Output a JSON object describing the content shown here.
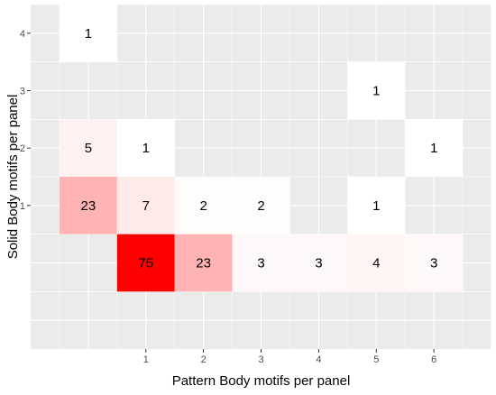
{
  "chart_data": {
    "type": "heatmap",
    "xlabel": "Pattern Body motifs per panel",
    "ylabel": "Solid Body motifs per panel",
    "x_ticks": [
      "1",
      "2",
      "3",
      "4",
      "5",
      "6"
    ],
    "y_ticks": [
      "1",
      "2",
      "3",
      "4"
    ],
    "xlim": [
      -1,
      7
    ],
    "ylim": [
      -1.5,
      4.5
    ],
    "grid": true,
    "fill_low": "#ffffff",
    "fill_high": "#ff0000",
    "value_min": 1,
    "value_max": 75,
    "cells": [
      {
        "x": 0,
        "y": 4,
        "value": 1,
        "label": "1"
      },
      {
        "x": 5,
        "y": 3,
        "value": 1,
        "label": "1"
      },
      {
        "x": 0,
        "y": 2,
        "value": 5,
        "label": "5"
      },
      {
        "x": 1,
        "y": 2,
        "value": 1,
        "label": "1"
      },
      {
        "x": 6,
        "y": 2,
        "value": 1,
        "label": "1"
      },
      {
        "x": 0,
        "y": 1,
        "value": 23,
        "label": "23"
      },
      {
        "x": 1,
        "y": 1,
        "value": 7,
        "label": "7"
      },
      {
        "x": 2,
        "y": 1,
        "value": 2,
        "label": "2"
      },
      {
        "x": 3,
        "y": 1,
        "value": 2,
        "label": "2"
      },
      {
        "x": 5,
        "y": 1,
        "value": 1,
        "label": "1"
      },
      {
        "x": 1,
        "y": 0,
        "value": 75,
        "label": "75"
      },
      {
        "x": 2,
        "y": 0,
        "value": 23,
        "label": "23"
      },
      {
        "x": 3,
        "y": 0,
        "value": 3,
        "label": "3"
      },
      {
        "x": 4,
        "y": 0,
        "value": 3,
        "label": "3"
      },
      {
        "x": 5,
        "y": 0,
        "value": 4,
        "label": "4"
      },
      {
        "x": 6,
        "y": 0,
        "value": 3,
        "label": "3"
      }
    ]
  }
}
